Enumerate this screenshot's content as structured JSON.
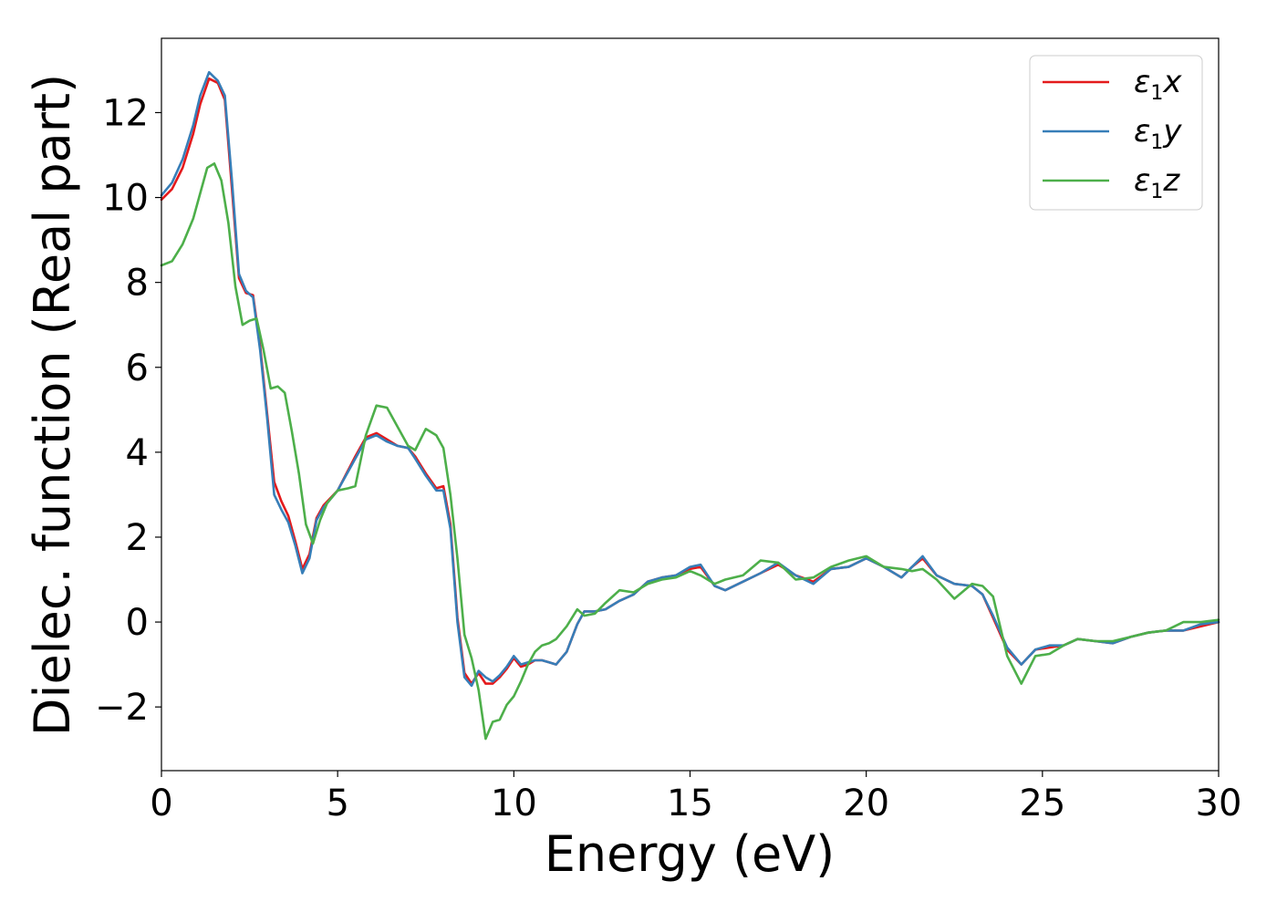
{
  "chart_data": {
    "type": "line",
    "xlabel": "Energy (eV)",
    "ylabel": "Dielec. function (Real part)",
    "xlim": [
      0,
      30
    ],
    "ylim": [
      -3.5,
      13.75
    ],
    "xticks": [
      0,
      5,
      10,
      15,
      20,
      25,
      30
    ],
    "xtick_labels": [
      "0",
      "5",
      "10",
      "15",
      "20",
      "25",
      "30"
    ],
    "yticks": [
      -2,
      0,
      2,
      4,
      6,
      8,
      10,
      12
    ],
    "ytick_labels": [
      "−2",
      "0",
      "2",
      "4",
      "6",
      "8",
      "10",
      "12"
    ],
    "grid": false,
    "legend_position": "top-right",
    "series": [
      {
        "name": "ε1x",
        "name_main": "ε",
        "name_sub": "1",
        "name_suffix": "x",
        "color": "#e41a1c",
        "x": [
          0,
          0.3,
          0.6,
          0.9,
          1.1,
          1.35,
          1.6,
          1.8,
          2.0,
          2.2,
          2.4,
          2.6,
          2.8,
          3.0,
          3.2,
          3.4,
          3.6,
          3.8,
          4.0,
          4.2,
          4.4,
          4.6,
          5.0,
          5.5,
          5.8,
          6.1,
          6.4,
          6.7,
          7.0,
          7.2,
          7.5,
          7.8,
          8.0,
          8.2,
          8.4,
          8.6,
          8.8,
          9.0,
          9.2,
          9.4,
          9.6,
          9.8,
          10.0,
          10.2,
          10.4,
          10.6,
          10.8,
          11.0,
          11.2,
          11.5,
          11.8,
          12.0,
          12.3,
          12.6,
          13.0,
          13.4,
          13.8,
          14.2,
          14.6,
          15.0,
          15.3,
          15.7,
          16.0,
          16.5,
          17.0,
          17.5,
          18.0,
          18.5,
          19.0,
          19.5,
          20.0,
          20.5,
          21.0,
          21.3,
          21.6,
          22.0,
          22.5,
          23.0,
          23.3,
          23.6,
          24.0,
          24.4,
          24.8,
          25.2,
          25.6,
          26.0,
          26.5,
          27.0,
          27.5,
          28.0,
          28.5,
          29.0,
          29.5,
          30.0
        ],
        "y": [
          9.95,
          10.2,
          10.7,
          11.5,
          12.2,
          12.8,
          12.7,
          12.3,
          10.2,
          8.1,
          7.75,
          7.7,
          6.5,
          4.9,
          3.3,
          2.85,
          2.5,
          1.9,
          1.25,
          1.6,
          2.45,
          2.75,
          3.1,
          3.9,
          4.35,
          4.45,
          4.3,
          4.15,
          4.1,
          3.9,
          3.5,
          3.15,
          3.2,
          2.3,
          0.1,
          -1.2,
          -1.45,
          -1.2,
          -1.45,
          -1.45,
          -1.3,
          -1.1,
          -0.85,
          -1.05,
          -1.0,
          -0.9,
          -0.9,
          -0.95,
          -1.0,
          -0.7,
          -0.05,
          0.25,
          0.25,
          0.3,
          0.5,
          0.65,
          0.95,
          1.05,
          1.1,
          1.25,
          1.3,
          0.85,
          0.75,
          0.95,
          1.15,
          1.35,
          1.1,
          0.95,
          1.25,
          1.3,
          1.5,
          1.3,
          1.05,
          1.3,
          1.5,
          1.1,
          0.9,
          0.85,
          0.65,
          0.1,
          -0.65,
          -1.0,
          -0.65,
          -0.6,
          -0.55,
          -0.4,
          -0.45,
          -0.5,
          -0.35,
          -0.25,
          -0.2,
          -0.2,
          -0.1,
          0.0
        ]
      },
      {
        "name": "ε1y",
        "name_main": "ε",
        "name_sub": "1",
        "name_suffix": "y",
        "color": "#377eb8",
        "x": [
          0,
          0.3,
          0.6,
          0.9,
          1.1,
          1.35,
          1.6,
          1.8,
          2.0,
          2.2,
          2.4,
          2.6,
          2.8,
          3.0,
          3.2,
          3.4,
          3.6,
          3.8,
          4.0,
          4.2,
          4.4,
          4.6,
          5.0,
          5.5,
          5.8,
          6.1,
          6.4,
          6.7,
          7.0,
          7.2,
          7.5,
          7.8,
          8.0,
          8.2,
          8.4,
          8.6,
          8.8,
          9.0,
          9.2,
          9.4,
          9.6,
          9.8,
          10.0,
          10.2,
          10.4,
          10.6,
          10.8,
          11.0,
          11.2,
          11.5,
          11.8,
          12.0,
          12.3,
          12.6,
          13.0,
          13.4,
          13.8,
          14.2,
          14.6,
          15.0,
          15.3,
          15.7,
          16.0,
          16.5,
          17.0,
          17.5,
          18.0,
          18.5,
          19.0,
          19.5,
          20.0,
          20.5,
          21.0,
          21.3,
          21.6,
          22.0,
          22.5,
          23.0,
          23.3,
          23.6,
          24.0,
          24.4,
          24.8,
          25.2,
          25.6,
          26.0,
          26.5,
          27.0,
          27.5,
          28.0,
          28.5,
          29.0,
          29.5,
          30.0
        ],
        "y": [
          10.05,
          10.35,
          10.9,
          11.7,
          12.4,
          12.95,
          12.75,
          12.4,
          10.4,
          8.2,
          7.8,
          7.65,
          6.4,
          4.8,
          3.0,
          2.65,
          2.35,
          1.8,
          1.15,
          1.5,
          2.4,
          2.7,
          3.1,
          3.85,
          4.3,
          4.4,
          4.25,
          4.15,
          4.1,
          3.85,
          3.45,
          3.1,
          3.1,
          2.2,
          0.0,
          -1.3,
          -1.5,
          -1.15,
          -1.3,
          -1.4,
          -1.25,
          -1.05,
          -0.8,
          -1.0,
          -0.95,
          -0.9,
          -0.9,
          -0.95,
          -1.0,
          -0.7,
          -0.05,
          0.25,
          0.25,
          0.3,
          0.5,
          0.65,
          0.95,
          1.05,
          1.1,
          1.3,
          1.35,
          0.85,
          0.75,
          0.95,
          1.15,
          1.4,
          1.1,
          0.9,
          1.25,
          1.3,
          1.5,
          1.3,
          1.05,
          1.3,
          1.55,
          1.1,
          0.9,
          0.85,
          0.65,
          0.15,
          -0.6,
          -1.0,
          -0.65,
          -0.55,
          -0.55,
          -0.4,
          -0.45,
          -0.5,
          -0.35,
          -0.25,
          -0.2,
          -0.2,
          -0.05,
          0.0
        ]
      },
      {
        "name": "ε1z",
        "name_main": "ε",
        "name_sub": "1",
        "name_suffix": "z",
        "color": "#4daf4a",
        "x": [
          0,
          0.3,
          0.6,
          0.9,
          1.1,
          1.3,
          1.5,
          1.7,
          1.9,
          2.1,
          2.3,
          2.5,
          2.7,
          2.9,
          3.1,
          3.3,
          3.5,
          3.7,
          3.9,
          4.1,
          4.3,
          4.5,
          4.7,
          5.0,
          5.3,
          5.5,
          5.8,
          6.1,
          6.4,
          6.7,
          7.0,
          7.2,
          7.5,
          7.8,
          8.0,
          8.2,
          8.4,
          8.6,
          8.8,
          9.0,
          9.2,
          9.4,
          9.6,
          9.8,
          10.0,
          10.2,
          10.4,
          10.6,
          10.8,
          11.0,
          11.2,
          11.5,
          11.8,
          12.0,
          12.3,
          12.6,
          13.0,
          13.4,
          13.8,
          14.2,
          14.6,
          15.0,
          15.3,
          15.7,
          16.0,
          16.5,
          17.0,
          17.5,
          18.0,
          18.5,
          19.0,
          19.5,
          20.0,
          20.5,
          21.0,
          21.3,
          21.6,
          22.0,
          22.5,
          23.0,
          23.3,
          23.6,
          24.0,
          24.4,
          24.8,
          25.2,
          25.6,
          26.0,
          26.5,
          27.0,
          27.5,
          28.0,
          28.5,
          29.0,
          29.5,
          30.0
        ],
        "y": [
          8.4,
          8.5,
          8.9,
          9.5,
          10.1,
          10.7,
          10.8,
          10.4,
          9.4,
          7.9,
          7.0,
          7.1,
          7.15,
          6.4,
          5.5,
          5.55,
          5.4,
          4.5,
          3.5,
          2.3,
          1.85,
          2.4,
          2.8,
          3.1,
          3.15,
          3.2,
          4.4,
          5.1,
          5.05,
          4.6,
          4.15,
          4.05,
          4.55,
          4.4,
          4.1,
          3.0,
          1.5,
          -0.3,
          -0.85,
          -1.6,
          -2.75,
          -2.35,
          -2.3,
          -1.95,
          -1.75,
          -1.4,
          -1.0,
          -0.7,
          -0.55,
          -0.5,
          -0.4,
          -0.1,
          0.3,
          0.15,
          0.2,
          0.45,
          0.75,
          0.7,
          0.9,
          1.0,
          1.05,
          1.2,
          1.1,
          0.9,
          1.0,
          1.1,
          1.45,
          1.4,
          1.0,
          1.05,
          1.3,
          1.45,
          1.55,
          1.3,
          1.25,
          1.2,
          1.25,
          1.0,
          0.55,
          0.9,
          0.85,
          0.6,
          -0.8,
          -1.45,
          -0.8,
          -0.75,
          -0.55,
          -0.4,
          -0.45,
          -0.45,
          -0.35,
          -0.25,
          -0.2,
          0.0,
          0.0,
          0.05
        ]
      }
    ]
  }
}
